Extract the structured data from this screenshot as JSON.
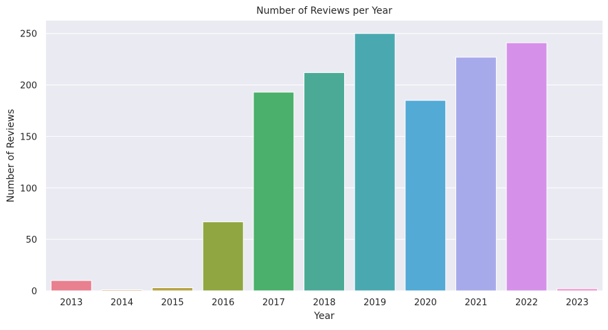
{
  "chart_data": {
    "type": "bar",
    "title": "Number of Reviews per Year",
    "xlabel": "Year",
    "ylabel": "Number of Reviews",
    "categories": [
      "2013",
      "2014",
      "2015",
      "2016",
      "2017",
      "2018",
      "2019",
      "2020",
      "2021",
      "2022",
      "2023"
    ],
    "values": [
      10,
      1,
      3,
      67,
      193,
      212,
      250,
      185,
      227,
      241,
      2
    ],
    "ylim": [
      0,
      262.5
    ],
    "yticks": [
      0,
      50,
      100,
      150,
      200,
      250
    ],
    "grid": true,
    "legend": "none",
    "colors": [
      "#e8808f",
      "#d89a54",
      "#b6a443",
      "#8fa641",
      "#4ab06b",
      "#4aaa96",
      "#4aa9b0",
      "#52aad5",
      "#a7aaea",
      "#d591e9",
      "#ef8bcc"
    ],
    "background": "#eaeaf2"
  }
}
